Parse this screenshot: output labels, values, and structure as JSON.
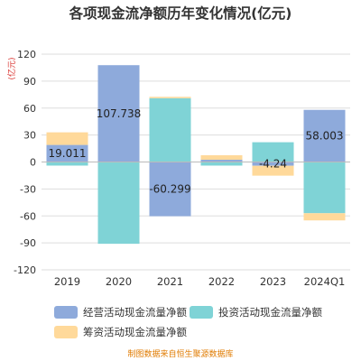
{
  "chart_data": {
    "type": "bar",
    "stacked": true,
    "title": "各项现金流净额历年变化情况(亿元)",
    "ylabel": "(亿元)",
    "xlabel": "",
    "ylim": [
      -120,
      120
    ],
    "yticks": [
      -120,
      -90,
      -60,
      -30,
      0,
      30,
      60,
      90,
      120
    ],
    "categories": [
      "2019",
      "2020",
      "2021",
      "2022",
      "2023",
      "2024Q1"
    ],
    "series": [
      {
        "name": "经营活动现金流量净额",
        "color": "#8eaadb",
        "values": [
          19.011,
          107.738,
          -60.299,
          2.5,
          -4.2,
          58.003
        ],
        "labels": [
          "19.011",
          "107.738",
          "-60.299",
          "",
          "-4.24",
          "58.003"
        ]
      },
      {
        "name": "投资活动现金流量净额",
        "color": "#7fd3d6",
        "values": [
          -4.0,
          -91.0,
          71.0,
          -4.0,
          22.0,
          -57.0
        ]
      },
      {
        "name": "筹资活动现金流量净额",
        "color": "#ffd99a",
        "values": [
          14.0,
          0,
          1.5,
          5.0,
          -11.0,
          -8.0
        ]
      }
    ],
    "grid": true,
    "legend_position": "bottom"
  },
  "source_note": "制图数据来自恒生聚源数据库"
}
